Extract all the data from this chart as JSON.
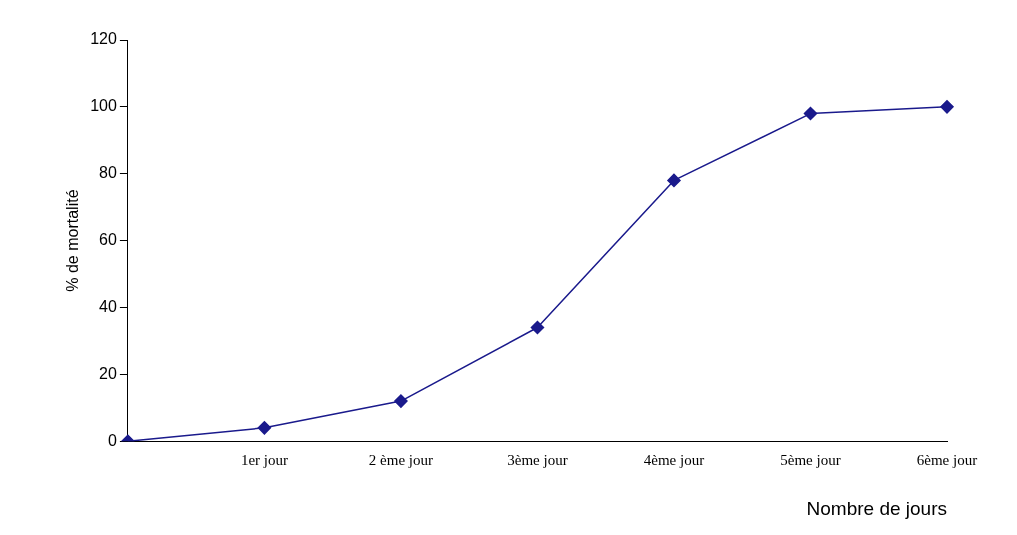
{
  "chart_data": {
    "type": "line",
    "xlabel": "Nombre de jours",
    "ylabel": "% de mortalité",
    "categories": [
      null,
      "1er jour",
      "2 ème jour",
      "3ème jour",
      "4ème jour",
      "5ème jour",
      "6ème jour"
    ],
    "series": [
      {
        "color": "#1a1a8c",
        "values": [
          0,
          4,
          12,
          34,
          78,
          98,
          100
        ]
      }
    ],
    "ylim": [
      0,
      120
    ],
    "yticks": [
      0,
      20,
      40,
      60,
      80,
      100,
      120
    ],
    "grid": false,
    "legend": false,
    "marker": "diamond",
    "line_style": "solid"
  }
}
